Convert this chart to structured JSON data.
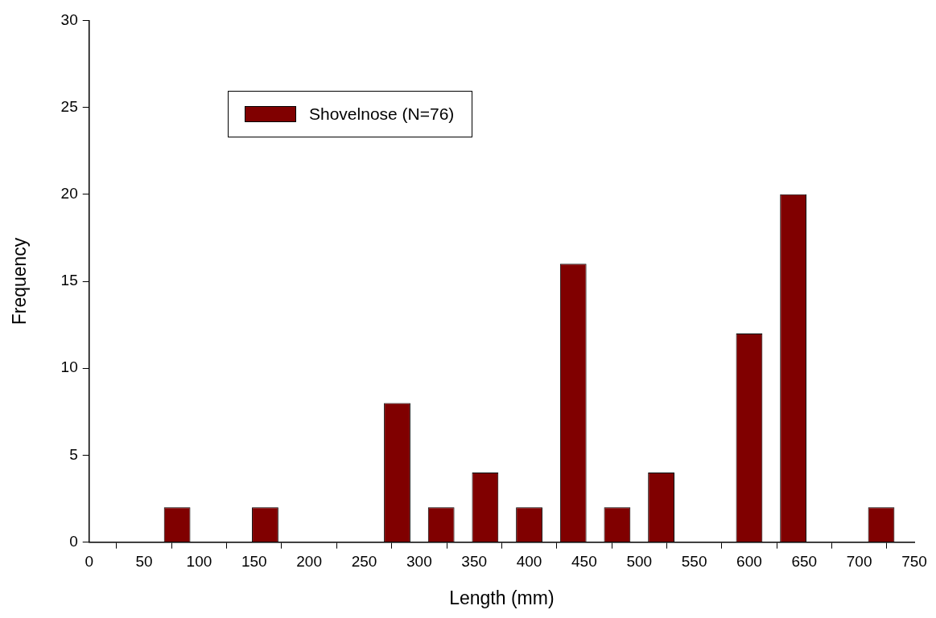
{
  "chart_data": {
    "type": "histogram",
    "xlabel": "Length (mm)",
    "ylabel": "Frequency",
    "bins": [
      60,
      100,
      140,
      180,
      220,
      260,
      300,
      340,
      380,
      420,
      460,
      500,
      540,
      580,
      620,
      660,
      700,
      740
    ],
    "series": [
      {
        "name": "Shovelnose (N=76)",
        "color": "#800000",
        "values": [
          2,
          0,
          2,
          0,
          0,
          8,
          2,
          4,
          2,
          16,
          2,
          4,
          0,
          12,
          20,
          0,
          2
        ]
      }
    ],
    "xlim": [
      0,
      750
    ],
    "xticks": [
      0,
      50,
      100,
      150,
      200,
      250,
      300,
      350,
      400,
      450,
      500,
      550,
      600,
      650,
      700,
      750
    ],
    "ylim": [
      0,
      30
    ],
    "yticks": [
      0,
      5,
      10,
      15,
      20,
      25,
      30
    ],
    "legend": "top left"
  }
}
